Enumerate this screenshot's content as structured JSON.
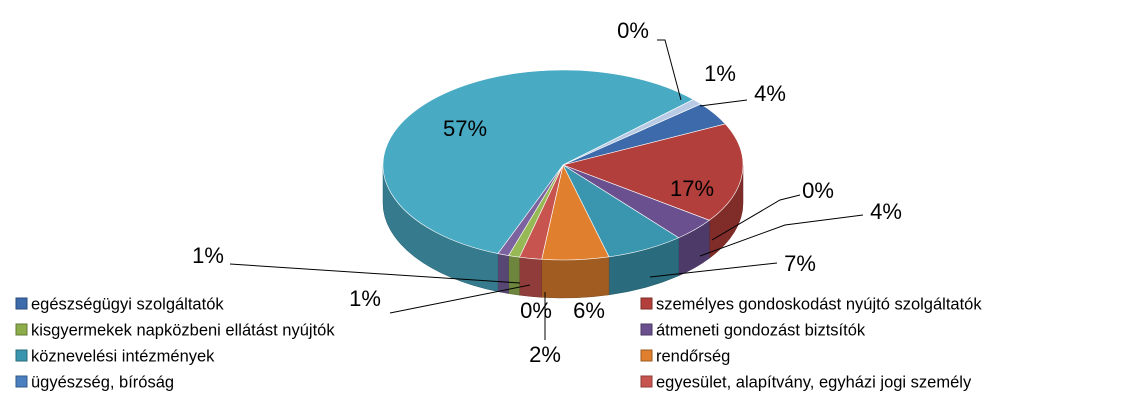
{
  "chart_data": {
    "type": "pie3d",
    "categories": [
      "egészségügyi szolgáltatók",
      "személyes gondoskodást nyújtó szolgáltatók",
      "kisgyermekek napközbeni ellátást nyújtók",
      "átmeneti gondozást biztsítók",
      "köznevelési intézmények",
      "rendőrség",
      "ügyészség, bíróság",
      "egyesület, alapítvány, egyházi jogi személy",
      null,
      null,
      null,
      null,
      null
    ],
    "values": [
      4,
      17,
      0,
      4,
      7,
      6,
      0,
      2,
      1,
      1,
      57,
      0,
      1
    ],
    "value_labels": [
      "4%",
      "17%",
      "0%",
      "4%",
      "7%",
      "6%",
      "0%",
      "2%",
      "1%",
      "1%",
      "57%",
      "0%",
      "1%"
    ],
    "colors": [
      "#3c6aab",
      "#b23f3b",
      "#8cad4a",
      "#6b5090",
      "#3a96ae",
      "#e0802f",
      "#4a7fc0",
      "#c85450",
      "#97b955",
      "#7c63a0",
      "#49aac4",
      "#f49448",
      "#b9cbe4"
    ],
    "legend": "bottom"
  }
}
